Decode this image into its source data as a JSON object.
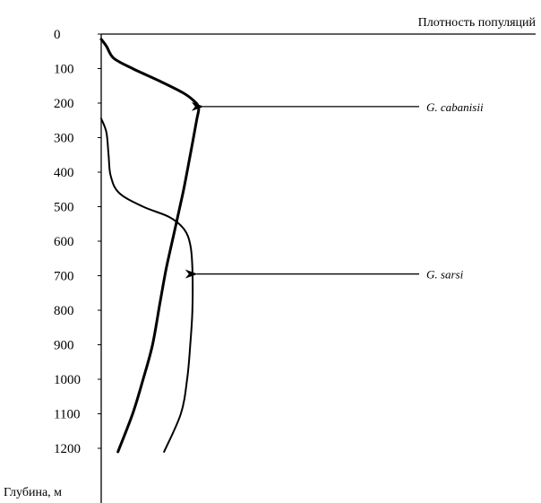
{
  "chart_data": {
    "type": "line",
    "title": "",
    "xlabel": "Плотность популяций",
    "ylabel": "Глубина, м",
    "y_axis_inverted": true,
    "ylim": [
      0,
      1300
    ],
    "y_ticks": [
      0,
      100,
      200,
      300,
      400,
      500,
      600,
      700,
      800,
      900,
      1000,
      1100,
      1200
    ],
    "x_units": "relative population density (no numeric scale shown)",
    "xlim": [
      0,
      1
    ],
    "grid": false,
    "legend": "none",
    "series": [
      {
        "name": "G. cabanisii",
        "color": "#000000",
        "stroke": "thick",
        "points": [
          {
            "x": 0.0,
            "y": 15
          },
          {
            "x": 0.05,
            "y": 35
          },
          {
            "x": 0.12,
            "y": 70
          },
          {
            "x": 0.3,
            "y": 100
          },
          {
            "x": 0.55,
            "y": 135
          },
          {
            "x": 0.78,
            "y": 170
          },
          {
            "x": 0.89,
            "y": 195
          },
          {
            "x": 0.93,
            "y": 215
          },
          {
            "x": 0.91,
            "y": 250
          },
          {
            "x": 0.85,
            "y": 350
          },
          {
            "x": 0.78,
            "y": 460
          },
          {
            "x": 0.7,
            "y": 570
          },
          {
            "x": 0.62,
            "y": 680
          },
          {
            "x": 0.56,
            "y": 780
          },
          {
            "x": 0.49,
            "y": 900
          },
          {
            "x": 0.4,
            "y": 1000
          },
          {
            "x": 0.3,
            "y": 1100
          },
          {
            "x": 0.16,
            "y": 1210
          }
        ]
      },
      {
        "name": "G. sarsi",
        "color": "#000000",
        "stroke": "thin",
        "points": [
          {
            "x": 0.0,
            "y": 245
          },
          {
            "x": 0.05,
            "y": 285
          },
          {
            "x": 0.07,
            "y": 350
          },
          {
            "x": 0.09,
            "y": 410
          },
          {
            "x": 0.17,
            "y": 460
          },
          {
            "x": 0.4,
            "y": 500
          },
          {
            "x": 0.65,
            "y": 530
          },
          {
            "x": 0.79,
            "y": 565
          },
          {
            "x": 0.85,
            "y": 610
          },
          {
            "x": 0.87,
            "y": 680
          },
          {
            "x": 0.87,
            "y": 800
          },
          {
            "x": 0.85,
            "y": 900
          },
          {
            "x": 0.82,
            "y": 1000
          },
          {
            "x": 0.76,
            "y": 1100
          },
          {
            "x": 0.6,
            "y": 1210
          }
        ]
      }
    ],
    "annotations": [
      {
        "text": "G. cabanisii",
        "points_to": {
          "x": 0.93,
          "y": 210
        }
      },
      {
        "text": "G. sarsi",
        "points_to": {
          "x": 0.87,
          "y": 695
        }
      }
    ]
  }
}
